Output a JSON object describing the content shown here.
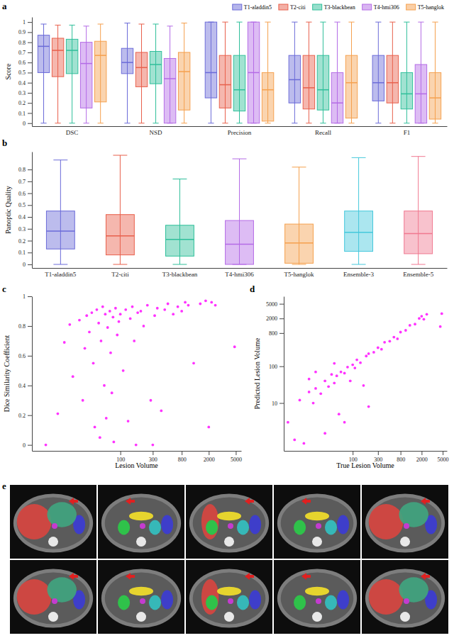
{
  "chart_data": [
    {
      "type": "box",
      "title": "a",
      "ylabel": "Score",
      "categories": [
        "DSC",
        "NSD",
        "Precision",
        "Recall",
        "F1"
      ],
      "series": [
        {
          "name": "T1-aladdin5",
          "color": "#6b6bd8",
          "min": [
            0,
            0,
            0,
            0,
            0
          ],
          "q1": [
            0.5,
            0.49,
            0.25,
            0.2,
            0.22
          ],
          "median": [
            0.76,
            0.6,
            0.5,
            0.43,
            0.4
          ],
          "q3": [
            0.87,
            0.74,
            1,
            0.67,
            0.67
          ],
          "max": [
            0.98,
            0.99,
            1,
            1,
            1
          ]
        },
        {
          "name": "T2-citi",
          "color": "#e8604c",
          "min": [
            0,
            0,
            0,
            0,
            0
          ],
          "q1": [
            0.46,
            0.36,
            0.15,
            0.14,
            0.2
          ],
          "median": [
            0.72,
            0.55,
            0.38,
            0.35,
            0.4
          ],
          "q3": [
            0.84,
            0.7,
            0.67,
            0.67,
            0.67
          ],
          "max": [
            0.97,
            0.98,
            1,
            1,
            1
          ]
        },
        {
          "name": "T3-blackbean",
          "color": "#2fbf9a",
          "min": [
            0,
            0,
            0,
            0,
            0
          ],
          "q1": [
            0.49,
            0.39,
            0.12,
            0.13,
            0.14
          ],
          "median": [
            0.72,
            0.58,
            0.33,
            0.33,
            0.29
          ],
          "q3": [
            0.83,
            0.71,
            0.67,
            0.67,
            0.5
          ],
          "max": [
            0.97,
            0.98,
            1,
            1,
            1
          ]
        },
        {
          "name": "T4-hmi306",
          "color": "#b46be6",
          "min": [
            0,
            0,
            0,
            0,
            0
          ],
          "q1": [
            0.15,
            0,
            0,
            0,
            0
          ],
          "median": [
            0.59,
            0.44,
            0.5,
            0.2,
            0.29
          ],
          "q3": [
            0.8,
            0.64,
            1,
            0.5,
            0.58
          ],
          "max": [
            0.96,
            0.96,
            1,
            1,
            1
          ]
        },
        {
          "name": "T5-hanglok",
          "color": "#f5a04e",
          "min": [
            0,
            0,
            0,
            0,
            0
          ],
          "q1": [
            0.21,
            0.13,
            0.02,
            0.05,
            0.04
          ],
          "median": [
            0.67,
            0.51,
            0.33,
            0.4,
            0.25
          ],
          "q3": [
            0.81,
            0.7,
            0.5,
            0.67,
            0.5
          ],
          "max": [
            0.98,
            0.99,
            1,
            1,
            1
          ]
        }
      ],
      "ylim": [
        -0.03,
        1.05
      ],
      "yticks": [
        0,
        0.1,
        0.2,
        0.3,
        0.4,
        0.5,
        0.6,
        0.7,
        0.8,
        0.9,
        1
      ],
      "grid": false,
      "legend": "top-right"
    },
    {
      "type": "box",
      "title": "b",
      "ylabel": "Panoptic Quality",
      "categories": [
        "T1-aladdin5",
        "T2-citi",
        "T3-blackbean",
        "T4-hmi306",
        "T5-hanglok",
        "Ensemble-3",
        "Ensemble-5"
      ],
      "colors": [
        "#6b6bd8",
        "#e8604c",
        "#2fbf9a",
        "#b46be6",
        "#f5a04e",
        "#45c8dc",
        "#f07890"
      ],
      "min": [
        0,
        0,
        0,
        0,
        0,
        0,
        0
      ],
      "q1": [
        0.13,
        0.08,
        0.07,
        0,
        0.01,
        0.11,
        0.09
      ],
      "median": [
        0.28,
        0.24,
        0.21,
        0.17,
        0.18,
        0.27,
        0.26
      ],
      "q3": [
        0.45,
        0.42,
        0.33,
        0.37,
        0.34,
        0.45,
        0.45
      ],
      "max": [
        0.88,
        0.92,
        0.72,
        0.89,
        0.82,
        0.9,
        0.91
      ],
      "ylim": [
        -0.03,
        0.95
      ],
      "yticks": [
        0,
        0.1,
        0.2,
        0.3,
        0.4,
        0.5,
        0.6,
        0.7,
        0.8
      ],
      "grid": false
    },
    {
      "type": "scatter",
      "title": "c",
      "xlabel": "Lesion Volume",
      "ylabel": "Dice Similarity Coefficient",
      "color": "#ff33ff",
      "log": "x",
      "x": [
        8,
        12,
        15,
        18,
        20,
        25,
        28,
        30,
        32,
        35,
        38,
        40,
        42,
        45,
        48,
        50,
        52,
        55,
        58,
        60,
        62,
        65,
        70,
        72,
        75,
        78,
        80,
        85,
        90,
        95,
        100,
        110,
        120,
        130,
        140,
        150,
        160,
        170,
        180,
        200,
        220,
        250,
        280,
        300,
        320,
        350,
        400,
        450,
        500,
        600,
        700,
        800,
        900,
        1000,
        1200,
        1500,
        1800,
        2000,
        2200,
        2500,
        4800
      ],
      "values": [
        0,
        0.21,
        0.69,
        0.81,
        0.46,
        0.84,
        0.3,
        0.65,
        0.87,
        0.76,
        0.89,
        0.55,
        0.12,
        0.91,
        0.82,
        0.05,
        0.7,
        0.93,
        0.4,
        0.88,
        0.18,
        0.79,
        0.9,
        0.62,
        0.35,
        0.86,
        0.02,
        0.92,
        0.74,
        0.83,
        0.88,
        0.5,
        0.91,
        0.16,
        0.85,
        0.93,
        0.7,
        0,
        0.89,
        0.9,
        0.8,
        0.94,
        0.3,
        0,
        0.87,
        0.92,
        0.23,
        0.91,
        0.95,
        0.88,
        0.93,
        0.9,
        0.96,
        0.94,
        0.55,
        0.95,
        0.97,
        0.12,
        0.96,
        0.94,
        0.66
      ],
      "xlim": [
        5,
        6000
      ],
      "xticks": [
        100,
        300,
        800,
        2000,
        5000
      ],
      "ylim": [
        -0.04,
        1
      ],
      "yticks": [
        0,
        0.2,
        0.4,
        0.6,
        0.8,
        1
      ]
    },
    {
      "type": "scatter",
      "title": "d",
      "xlabel": "True Lesion Volume",
      "ylabel": "Predicted Lesion Volume",
      "color": "#ff33ff",
      "log": true,
      "x": [
        6,
        8,
        10,
        12,
        15,
        18,
        20,
        25,
        30,
        35,
        40,
        45,
        50,
        55,
        60,
        70,
        80,
        90,
        100,
        110,
        120,
        140,
        160,
        180,
        200,
        250,
        300,
        350,
        400,
        500,
        600,
        700,
        800,
        1000,
        1200,
        1500,
        1800,
        2000,
        2200,
        2500,
        4500,
        4800,
        30,
        70,
        200,
        45,
        20,
        15
      ],
      "values": [
        3,
        1,
        12,
        0.8,
        20,
        10,
        25,
        18,
        40,
        28,
        60,
        35,
        55,
        5,
        70,
        65,
        95,
        40,
        110,
        90,
        150,
        125,
        30,
        190,
        220,
        240,
        320,
        290,
        450,
        480,
        620,
        560,
        850,
        950,
        1300,
        1400,
        2000,
        2300,
        1900,
        2600,
        1200,
        2700,
        1.5,
        3,
        8,
        120,
        70,
        45
      ],
      "xlim": [
        5,
        6000
      ],
      "xticks": [
        100,
        300,
        800,
        2000,
        5000
      ],
      "ylim": [
        0.5,
        8000
      ],
      "yticks": [
        10,
        100,
        800,
        2000,
        5000
      ]
    }
  ],
  "image_panel": {
    "title": "e"
  }
}
